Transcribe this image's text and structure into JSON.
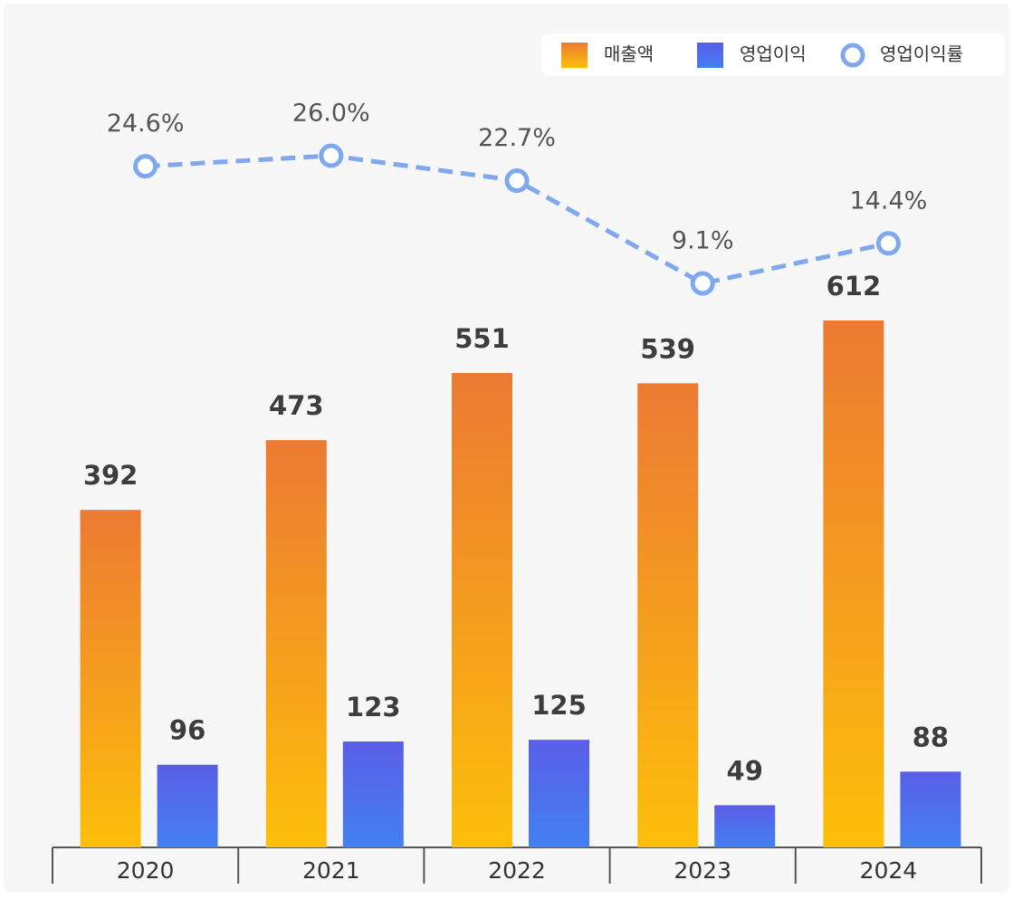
{
  "chart_data": {
    "type": "bar_line",
    "categories": [
      "2020",
      "2021",
      "2022",
      "2023",
      "2024"
    ],
    "series": [
      {
        "name": "매출액",
        "type": "bar",
        "colors": [
          "#ec7a33",
          "#fdbf0a"
        ],
        "values": [
          392,
          473,
          551,
          539,
          612
        ]
      },
      {
        "name": "영업이익",
        "type": "bar",
        "colors": [
          "#5a5ee8",
          "#4380f0"
        ],
        "values": [
          96,
          123,
          125,
          49,
          88
        ]
      },
      {
        "name": "영업이익률",
        "type": "line",
        "axis": "y2",
        "color": "#7fa8f0",
        "values": [
          24.6,
          26.0,
          22.7,
          9.1,
          14.4
        ],
        "value_labels": [
          "24.6%",
          "26.0%",
          "22.7%",
          "9.1%",
          "14.4%"
        ]
      }
    ],
    "ylim": [
      0,
      700
    ],
    "y2lim": [
      0,
      30
    ],
    "legend": "top-right"
  }
}
